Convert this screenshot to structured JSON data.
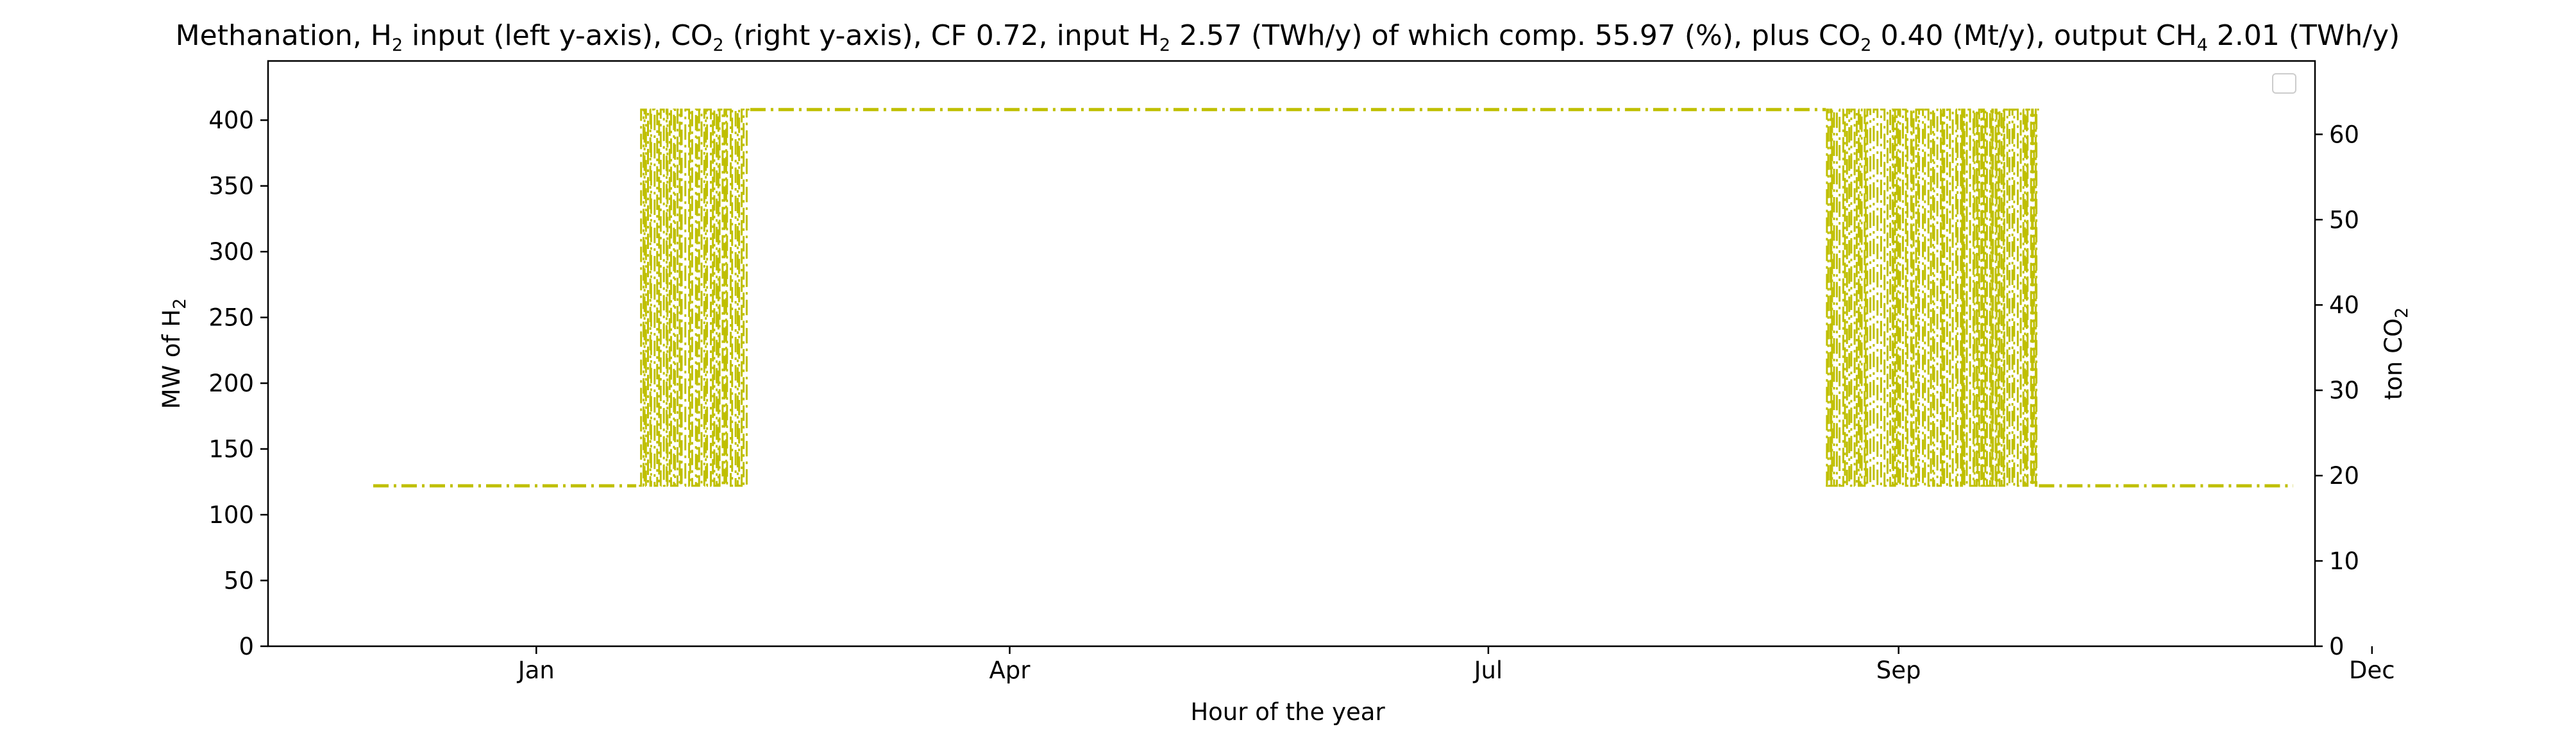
{
  "chart_data": {
    "type": "line",
    "title_parts": [
      "Methanation, H",
      "2",
      " input (left y-axis), CO",
      "2",
      " (right y-axis), CF 0.72, input H",
      "2",
      " 2.57 (TWh/y) of which comp. 55.97 (%), plus CO",
      "2",
      " 0.40 (Mt/y), output CH",
      "4",
      " 2.01 (TWh/y)"
    ],
    "xlabel": "Hour of the year",
    "ylabel_left": {
      "main": "MW of H",
      "sub": "2"
    },
    "ylabel_right": {
      "main": "ton CO",
      "sub": "2"
    },
    "xlim": [
      0,
      8760
    ],
    "ylim_left": [
      0,
      445
    ],
    "ylim_right": [
      0,
      68.6
    ],
    "x_ticks": [
      {
        "label": "Jan",
        "hour": 744
      },
      {
        "label": "Apr",
        "hour": 2904
      },
      {
        "label": "Jul",
        "hour": 5088
      },
      {
        "label": "Sep",
        "hour": 6960
      },
      {
        "label": "Dec",
        "hour": 9120
      }
    ],
    "y_ticks_left": [
      0,
      50,
      100,
      150,
      200,
      250,
      300,
      350,
      400
    ],
    "y_ticks_right": [
      0,
      10,
      20,
      30,
      40,
      50,
      60
    ],
    "grid": false,
    "legend": "top-right (empty)",
    "line_color": "#bfbf00",
    "line_style": "dash-dot",
    "series": [
      {
        "axis": "left",
        "unit": "MW",
        "segments": [
          {
            "x": [
              0,
              1200
            ],
            "y": [
              122,
              122
            ]
          },
          {
            "x": [
              1212,
              1710
            ],
            "y_range": [
              122,
              408
            ],
            "pattern": "rapid switching"
          },
          {
            "x": [
              1720,
              6628
            ],
            "y": [
              408,
              408
            ]
          },
          {
            "x": [
              6628,
              7600
            ],
            "y_range": [
              122,
              408
            ],
            "pattern": "rapid switching"
          },
          {
            "x": [
              7600,
              8760
            ],
            "y": [
              122,
              122
            ]
          }
        ]
      }
    ]
  }
}
